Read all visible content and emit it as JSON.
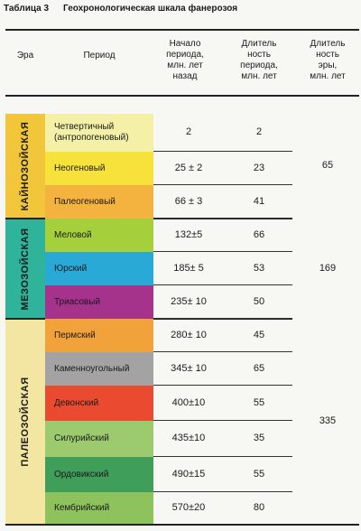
{
  "caption": {
    "table_number": "Таблица 3",
    "title": "Геохронологическая шкала фанерозоя"
  },
  "headers": {
    "era": "Эра",
    "period": "Период",
    "start": [
      "Начало",
      "периода,",
      "млн. лет",
      "назад"
    ],
    "duration_period": [
      "Длитель",
      "ность",
      "периода,",
      "млн. лет"
    ],
    "duration_era": [
      "Длитель",
      "ность",
      "эры,",
      "млн. лет"
    ]
  },
  "eras": [
    {
      "name": "КАЙНОЗОЙСКАЯ",
      "duration": "65",
      "color": "#f2c63a"
    },
    {
      "name": "МЕЗОЗОЙСКАЯ",
      "duration": "169",
      "color": "#2fb39a"
    },
    {
      "name": "ПАЛЕОЗОЙСКАЯ",
      "duration": "335",
      "color": "#f3e6a2"
    }
  ],
  "periods": [
    {
      "name": "Четвертичный (антропогеновый)",
      "start": "2",
      "duration": "2",
      "color": "#f4f0a8"
    },
    {
      "name": "Неогеновый",
      "start": "25 ± 2",
      "duration": "23",
      "color": "#f6e23a"
    },
    {
      "name": "Палеогеновый",
      "start": "66 ± 3",
      "duration": "41",
      "color": "#f4b23e"
    },
    {
      "name": "Меловой",
      "start": "132±5",
      "duration": "66",
      "color": "#a6cf3c"
    },
    {
      "name": "Юрский",
      "start": "185± 5",
      "duration": "53",
      "color": "#28a9d6"
    },
    {
      "name": "Триасовый",
      "start": "235± 10",
      "duration": "50",
      "color": "#a6338b"
    },
    {
      "name": "Пермский",
      "start": "280± 10",
      "duration": "45",
      "color": "#f2a23a"
    },
    {
      "name": "Каменноугольный",
      "start": "345± 10",
      "duration": "65",
      "color": "#a3a3a3"
    },
    {
      "name": "Девонский",
      "start": "400±10",
      "duration": "55",
      "color": "#ea4b30"
    },
    {
      "name": "Силурийский",
      "start": "435±10",
      "duration": "35",
      "color": "#9ccb6f"
    },
    {
      "name": "Ордовикский",
      "start": "490±15",
      "duration": "55",
      "color": "#3f9e5a"
    },
    {
      "name": "Кембрийский",
      "start": "570±20",
      "duration": "80",
      "color": "#8dc25c"
    }
  ]
}
